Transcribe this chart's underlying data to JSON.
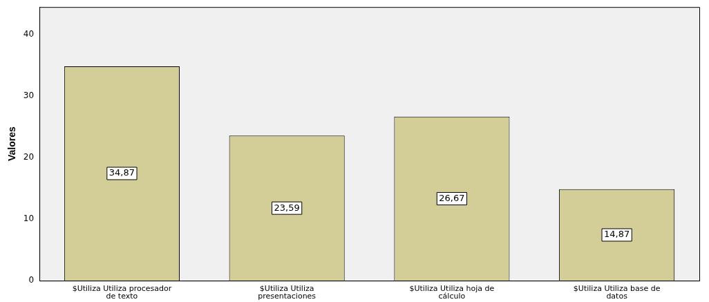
{
  "chart_data": {
    "type": "bar",
    "ylabel": "Valores",
    "categories": [
      "$Utiliza Utiliza procesador de texto",
      "$Utiliza Utiliza presentaciones",
      "$Utiliza Utiliza hoja de cálculo",
      "$Utiliza Utiliza base de datos"
    ],
    "values": [
      34.87,
      23.59,
      26.67,
      14.87
    ],
    "value_labels": [
      "34,87",
      "23,59",
      "26,67",
      "14,87"
    ],
    "color": "#d3ce97",
    "ylim": [
      0,
      44.5
    ],
    "yticks": [
      0,
      10,
      20,
      30,
      40
    ],
    "grid": false,
    "legend": false
  }
}
